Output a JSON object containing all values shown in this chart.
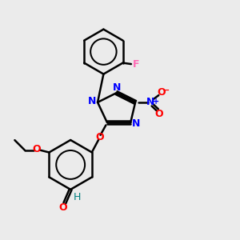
{
  "background_color": "#ebebeb",
  "bond_color": "#000000",
  "nitrogen_color": "#0000ff",
  "oxygen_color": "#ff0000",
  "fluorine_color": "#ff69b4",
  "aldehyde_h_color": "#008080",
  "bond_width": 1.8,
  "figsize": [
    3.0,
    3.0
  ],
  "dpi": 100,
  "xlim": [
    0,
    10
  ],
  "ylim": [
    0,
    10
  ]
}
